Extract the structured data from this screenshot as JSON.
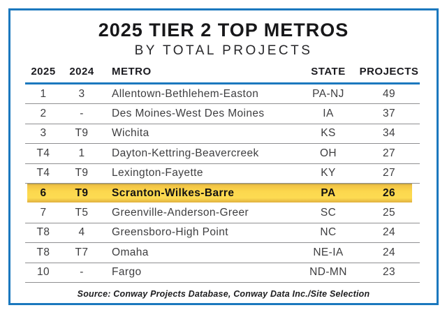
{
  "title": "2025 TIER 2 TOP METROS",
  "subtitle": "BY TOTAL PROJECTS",
  "colors": {
    "frame_blue": "#1b78be",
    "header_rule_blue": "#1b78be",
    "row_separator_gray": "#8f8f91",
    "highlight_yellow_top": "#f2c445",
    "highlight_yellow_mid": "#fcd84e",
    "highlight_yellow_bottom": "#e0b03e",
    "text_dark": "#171719",
    "text_body": "#3e3e40"
  },
  "table": {
    "columns": [
      "2025",
      "2024",
      "METRO",
      "STATE",
      "PROJECTS"
    ],
    "rows": [
      {
        "rank2025": "1",
        "rank2024": "3",
        "metro": "Allentown-Bethlehem-Easton",
        "state": "PA-NJ",
        "projects": "49",
        "highlight": false
      },
      {
        "rank2025": "2",
        "rank2024": "-",
        "metro": "Des Moines-West Des Moines",
        "state": "IA",
        "projects": "37",
        "highlight": false
      },
      {
        "rank2025": "3",
        "rank2024": "T9",
        "metro": "Wichita",
        "state": "KS",
        "projects": "34",
        "highlight": false
      },
      {
        "rank2025": "T4",
        "rank2024": "1",
        "metro": "Dayton-Kettring-Beavercreek",
        "state": "OH",
        "projects": "27",
        "highlight": false
      },
      {
        "rank2025": "T4",
        "rank2024": "T9",
        "metro": "Lexington-Fayette",
        "state": "KY",
        "projects": "27",
        "highlight": false
      },
      {
        "rank2025": "6",
        "rank2024": "T9",
        "metro": "Scranton-Wilkes-Barre",
        "state": "PA",
        "projects": "26",
        "highlight": true
      },
      {
        "rank2025": "7",
        "rank2024": "T5",
        "metro": "Greenville-Anderson-Greer",
        "state": "SC",
        "projects": "25",
        "highlight": false
      },
      {
        "rank2025": "T8",
        "rank2024": "4",
        "metro": "Greensboro-High Point",
        "state": "NC",
        "projects": "24",
        "highlight": false
      },
      {
        "rank2025": "T8",
        "rank2024": "T7",
        "metro": "Omaha",
        "state": "NE-IA",
        "projects": "24",
        "highlight": false
      },
      {
        "rank2025": "10",
        "rank2024": "-",
        "metro": "Fargo",
        "state": "ND-MN",
        "projects": "23",
        "highlight": false
      }
    ]
  },
  "source": "Source: Conway Projects Database, Conway Data Inc./Site Selection"
}
